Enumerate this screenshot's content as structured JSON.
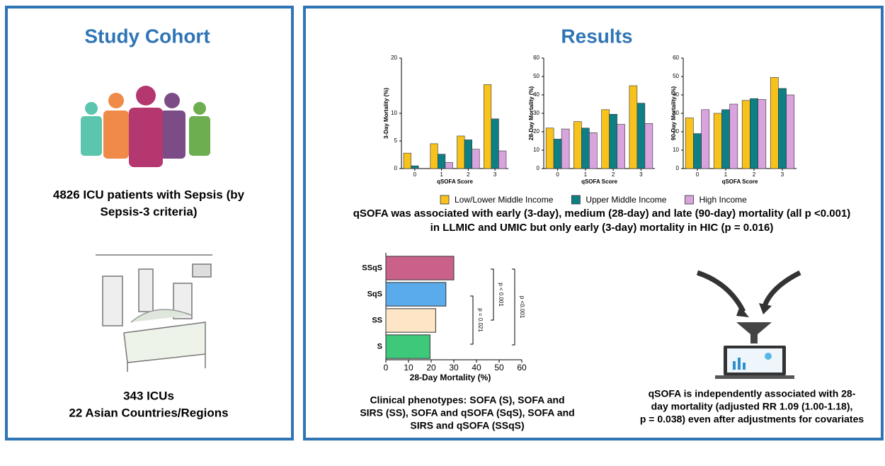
{
  "left_panel": {
    "title": "Study Cohort",
    "cohort_lines": [
      "4826 ICU patients with Sepsis (by",
      "Sepsis-3 criteria)"
    ],
    "site_lines": [
      "343 ICUs",
      "22 Asian Countries/Regions"
    ]
  },
  "right_panel": {
    "title": "Results",
    "summary_lines": [
      "qSOFA was associated with early (3-day), medium (28-day) and late (90-day) mortality (all p <0.001)",
      "in LLMIC and UMIC but only early (3-day) mortality in HIC (p = 0.016)"
    ],
    "phenotype_lines": [
      "Clinical phenotypes: SOFA (S), SOFA and",
      "SIRS (SS), SOFA and qSOFA (SqS), SOFA and",
      "SIRS and qSOFA (SSqS)"
    ],
    "adjusted_lines": [
      "qSOFA is independently associated with  28-",
      "day mortality (adjusted RR 1.09 (1.00-1.18),",
      "p = 0.038) even after adjustments for covariates"
    ]
  },
  "chart_data": [
    {
      "type": "bar",
      "y_label": "3-Day Mortality (%)",
      "x_label": "qSOFA Score",
      "categories": [
        "0",
        "1",
        "2",
        "3"
      ],
      "ylim": [
        0,
        20
      ],
      "yticks": [
        0,
        5,
        10,
        20
      ],
      "series": [
        {
          "name": "Low/Lower Middle Income",
          "color": "#f8c21c",
          "values": [
            2.8,
            4.5,
            5.9,
            15.2
          ]
        },
        {
          "name": "Upper Middle Income",
          "color": "#0f7f86",
          "values": [
            0.5,
            2.6,
            5.2,
            9.0
          ]
        },
        {
          "name": "High Income",
          "color": "#d9a3dd",
          "values": [
            0,
            1.1,
            3.5,
            3.2
          ]
        }
      ]
    },
    {
      "type": "bar",
      "y_label": "28-Day Mortality (%)",
      "x_label": "qSOFA Score",
      "categories": [
        "0",
        "1",
        "2",
        "3"
      ],
      "ylim": [
        0,
        60
      ],
      "yticks": [
        0,
        10,
        20,
        30,
        40,
        50,
        60
      ],
      "series": [
        {
          "color": "#f8c21c",
          "values": [
            22,
            25.5,
            32,
            45
          ]
        },
        {
          "color": "#0f7f86",
          "values": [
            16,
            22,
            29.5,
            35.5
          ]
        },
        {
          "color": "#d9a3dd",
          "values": [
            21.5,
            19.5,
            24,
            24.5
          ]
        }
      ]
    },
    {
      "type": "bar",
      "y_label": "90-Day Mortality (%)",
      "x_label": "qSOFA Score",
      "categories": [
        "0",
        "1",
        "2",
        "3"
      ],
      "ylim": [
        0,
        60
      ],
      "yticks": [
        0,
        10,
        20,
        30,
        40,
        50,
        60
      ],
      "series": [
        {
          "color": "#f8c21c",
          "values": [
            27.5,
            30,
            37,
            49.5
          ]
        },
        {
          "color": "#0f7f86",
          "values": [
            19,
            32,
            38,
            43.5
          ]
        },
        {
          "color": "#d9a3dd",
          "values": [
            32,
            35,
            37.5,
            40
          ]
        }
      ]
    },
    {
      "type": "barh",
      "x_label": "28-Day Mortality (%)",
      "categories": [
        "SSqS",
        "SqS",
        "SS",
        "S"
      ],
      "values": [
        30,
        26.5,
        22,
        19.5
      ],
      "colors": [
        "#c9618a",
        "#5aabeb",
        "#fde5c6",
        "#3ec879"
      ],
      "xlim": [
        0,
        60
      ],
      "xticks": [
        0,
        10,
        20,
        30,
        40,
        50,
        60
      ],
      "annotations": [
        "p = 0.021",
        "p < 0.001",
        "p <0.001"
      ]
    }
  ]
}
